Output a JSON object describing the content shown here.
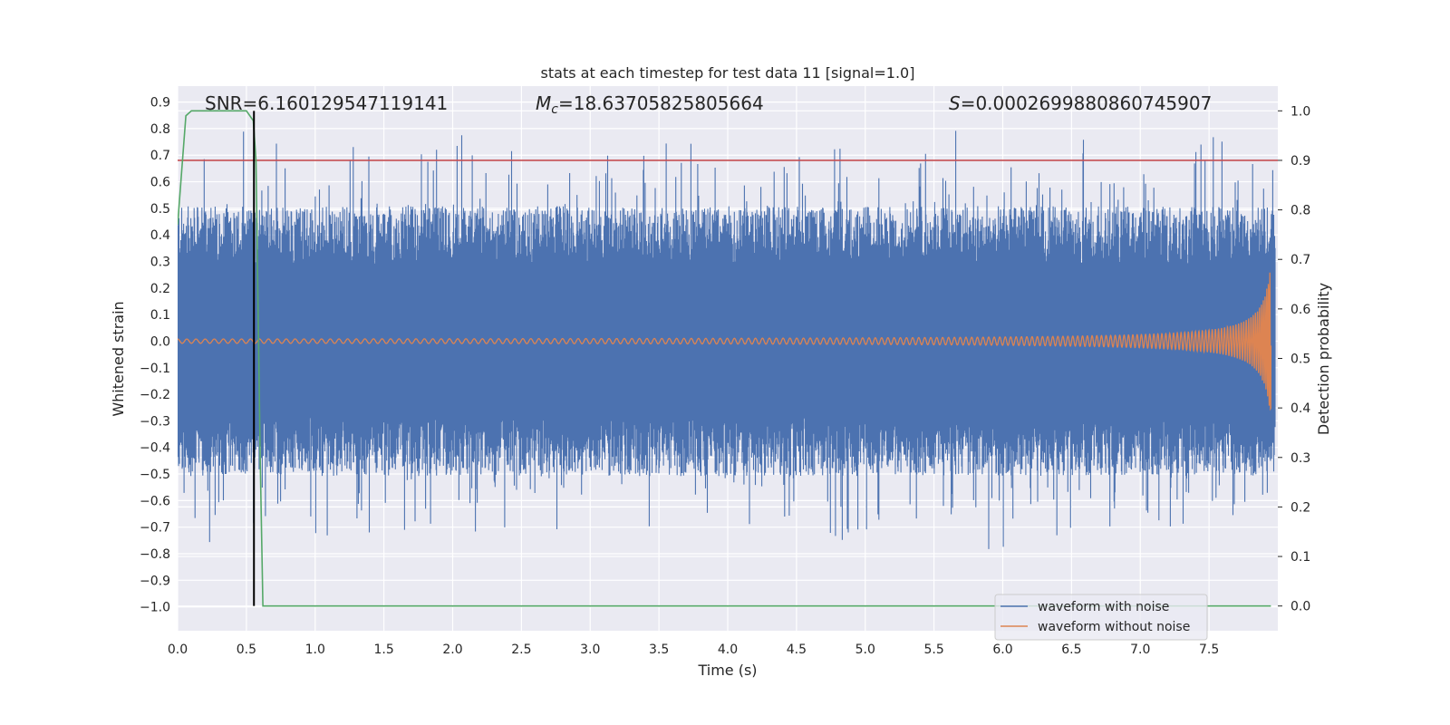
{
  "chart_data": {
    "type": "line",
    "title": "stats at each timestep for test data 11 [signal=1.0]",
    "xlabel": "Time (s)",
    "ylabel": "Whitened strain",
    "ylabel_right": "Detection probability",
    "xlim": [
      0.0,
      8.0
    ],
    "ylim": [
      -1.09,
      0.96
    ],
    "ylim_right": [
      -0.05,
      1.05
    ],
    "xticks": [
      "0.0",
      "0.5",
      "1.0",
      "1.5",
      "2.0",
      "2.5",
      "3.0",
      "3.5",
      "4.0",
      "4.5",
      "5.0",
      "5.5",
      "6.0",
      "6.5",
      "7.0",
      "7.5"
    ],
    "yticks": [
      "0.9",
      "0.8",
      "0.7",
      "0.6",
      "0.5",
      "0.4",
      "0.3",
      "0.2",
      "0.1",
      "0.0",
      "−0.1",
      "−0.2",
      "−0.3",
      "−0.4",
      "−0.5",
      "−0.6",
      "−0.7",
      "−0.8",
      "−0.9",
      "−1.0"
    ],
    "yticks_right": [
      "1.0",
      "0.9",
      "0.8",
      "0.7",
      "0.6",
      "0.5",
      "0.4",
      "0.3",
      "0.2",
      "0.1",
      "0.0"
    ],
    "annotations": {
      "snr": "SNR=6.160129547119141",
      "mc_symbol": "M",
      "mc_sub": "c",
      "mc_value": "=18.63705825805664",
      "s_symbol": "S",
      "s_value": "=0.0002699880860745907"
    },
    "series": [
      {
        "name": "waveform with noise",
        "color": "#4c72b0",
        "envelope_typical": 0.42,
        "peak_max": 0.88,
        "peak_min": -0.95
      },
      {
        "name": "waveform without noise",
        "color": "#dd8452",
        "amplitude_start": 0.005,
        "amplitude_end": 0.3,
        "chirp": true,
        "end_time": 7.95
      }
    ],
    "detection_probability": {
      "color": "#55a868",
      "x": [
        0.0,
        0.06,
        0.1,
        0.5,
        0.55,
        0.57,
        0.6,
        0.62,
        7.95
      ],
      "y": [
        0.77,
        0.99,
        1.0,
        1.0,
        0.98,
        0.9,
        0.3,
        0.0,
        0.0
      ]
    },
    "threshold": {
      "color": "#c44e52",
      "value": 0.9
    },
    "marker_time": 0.555,
    "grid": true,
    "legend_position": "lower right"
  },
  "colors": {
    "axes_bg": "#eaeaf2",
    "grid": "#ffffff",
    "text": "#262626"
  }
}
